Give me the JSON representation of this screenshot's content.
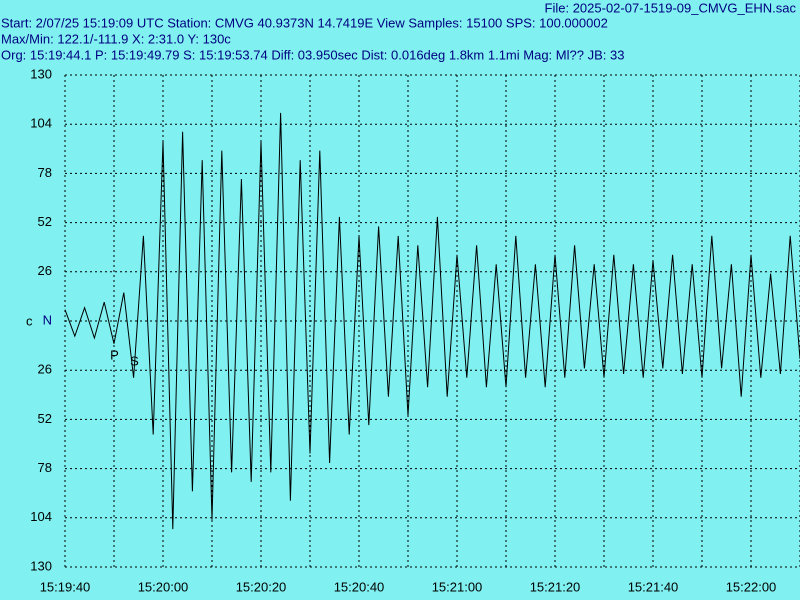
{
  "header": {
    "file": "File: 2025-02-07-1519-09_CMVG_EHN.sac",
    "line1": "Start: 2/07/25 15:19:09 UTC Station: CMVG 40.9373N 14.7419E View Samples: 15100  SPS: 100.000002",
    "line2": "Max/Min: 122.1/-111.9 X: 2:31.0 Y: 130c",
    "line3": "Org: 15:19:44.1 P: 15:19:49.79 S: 15:19:53.74 Diff: 03.950sec Dist: 0.016deg 1.8km 1.1mi  Mag: Ml?? JB: 33"
  },
  "chart_data": {
    "type": "line",
    "color": "#000000",
    "grid": true,
    "channel_label": "c",
    "xlim": [
      0,
      150
    ],
    "ylim": [
      -130,
      130
    ],
    "xticks": [
      {
        "value": 0,
        "label": "15:19:40"
      },
      {
        "value": 20,
        "label": "15:20:00"
      },
      {
        "value": 40,
        "label": "15:20:20"
      },
      {
        "value": 60,
        "label": "15:20:40"
      },
      {
        "value": 80,
        "label": "15:21:00"
      },
      {
        "value": 100,
        "label": "15:21:20"
      },
      {
        "value": 120,
        "label": "15:21:40"
      },
      {
        "value": 140,
        "label": "15:22:00"
      }
    ],
    "xminor": [
      10,
      30,
      50,
      70,
      90,
      110,
      130,
      150
    ],
    "yticks": [
      130,
      104,
      78,
      52,
      26,
      {
        "value": 0,
        "label": "N"
      },
      {
        "value": -26,
        "label": "26"
      },
      {
        "value": -52,
        "label": "52"
      },
      {
        "value": -78,
        "label": "78"
      },
      {
        "value": -104,
        "label": "104"
      },
      {
        "value": -130,
        "label": "130"
      }
    ],
    "picks": [
      {
        "label": "P",
        "x": 9.2
      },
      {
        "label": "S",
        "x": 13.3
      }
    ],
    "x": [
      0,
      2,
      4,
      6,
      8,
      10,
      12,
      14,
      16,
      18,
      20,
      22,
      24,
      26,
      28,
      30,
      32,
      34,
      36,
      38,
      40,
      42,
      44,
      46,
      48,
      50,
      52,
      54,
      56,
      58,
      60,
      62,
      64,
      66,
      68,
      70,
      72,
      74,
      76,
      78,
      80,
      82,
      84,
      86,
      88,
      90,
      92,
      94,
      96,
      98,
      100,
      102,
      104,
      106,
      108,
      110,
      112,
      114,
      116,
      118,
      120,
      122,
      124,
      126,
      128,
      130,
      132,
      134,
      136,
      138,
      140,
      142,
      144,
      146,
      148,
      150
    ],
    "values": [
      6,
      -8,
      7,
      -9,
      10,
      -12,
      15,
      -30,
      45,
      -60,
      95,
      -110,
      100,
      -90,
      85,
      -105,
      90,
      -80,
      75,
      -85,
      95,
      -80,
      110,
      -95,
      85,
      -70,
      90,
      -75,
      55,
      -60,
      45,
      -55,
      50,
      -40,
      45,
      -50,
      40,
      -35,
      55,
      -40,
      35,
      -30,
      40,
      -35,
      30,
      -35,
      45,
      -30,
      30,
      -35,
      35,
      -30,
      40,
      -25,
      30,
      -30,
      35,
      -28,
      30,
      -30,
      32,
      -25,
      35,
      -28,
      30,
      -30,
      45,
      -25,
      30,
      -40,
      35,
      -30,
      25,
      -28,
      45,
      -20
    ]
  }
}
